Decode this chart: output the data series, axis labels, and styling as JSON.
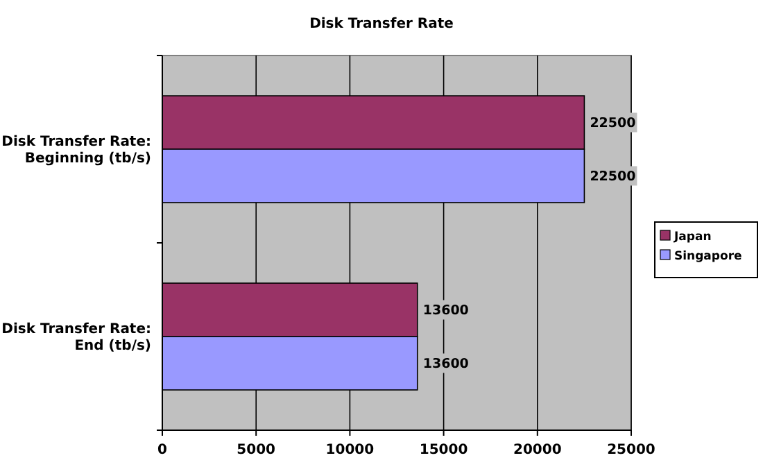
{
  "chart_data": {
    "type": "bar",
    "orientation": "horizontal",
    "title": "Disk Transfer Rate",
    "categories": [
      "Disk Transfer Rate: Beginning (tb/s)",
      "Disk Transfer Rate: End (tb/s)"
    ],
    "series": [
      {
        "name": "Japan",
        "color": "#993366",
        "values": [
          22500,
          13600
        ]
      },
      {
        "name": "Singapore",
        "color": "#9999ff",
        "values": [
          22500,
          13600
        ]
      }
    ],
    "xlim": [
      0,
      25000
    ],
    "xticks": [
      0,
      5000,
      10000,
      15000,
      20000,
      25000
    ],
    "grid": "x",
    "legend": "right",
    "data_labels": true
  }
}
